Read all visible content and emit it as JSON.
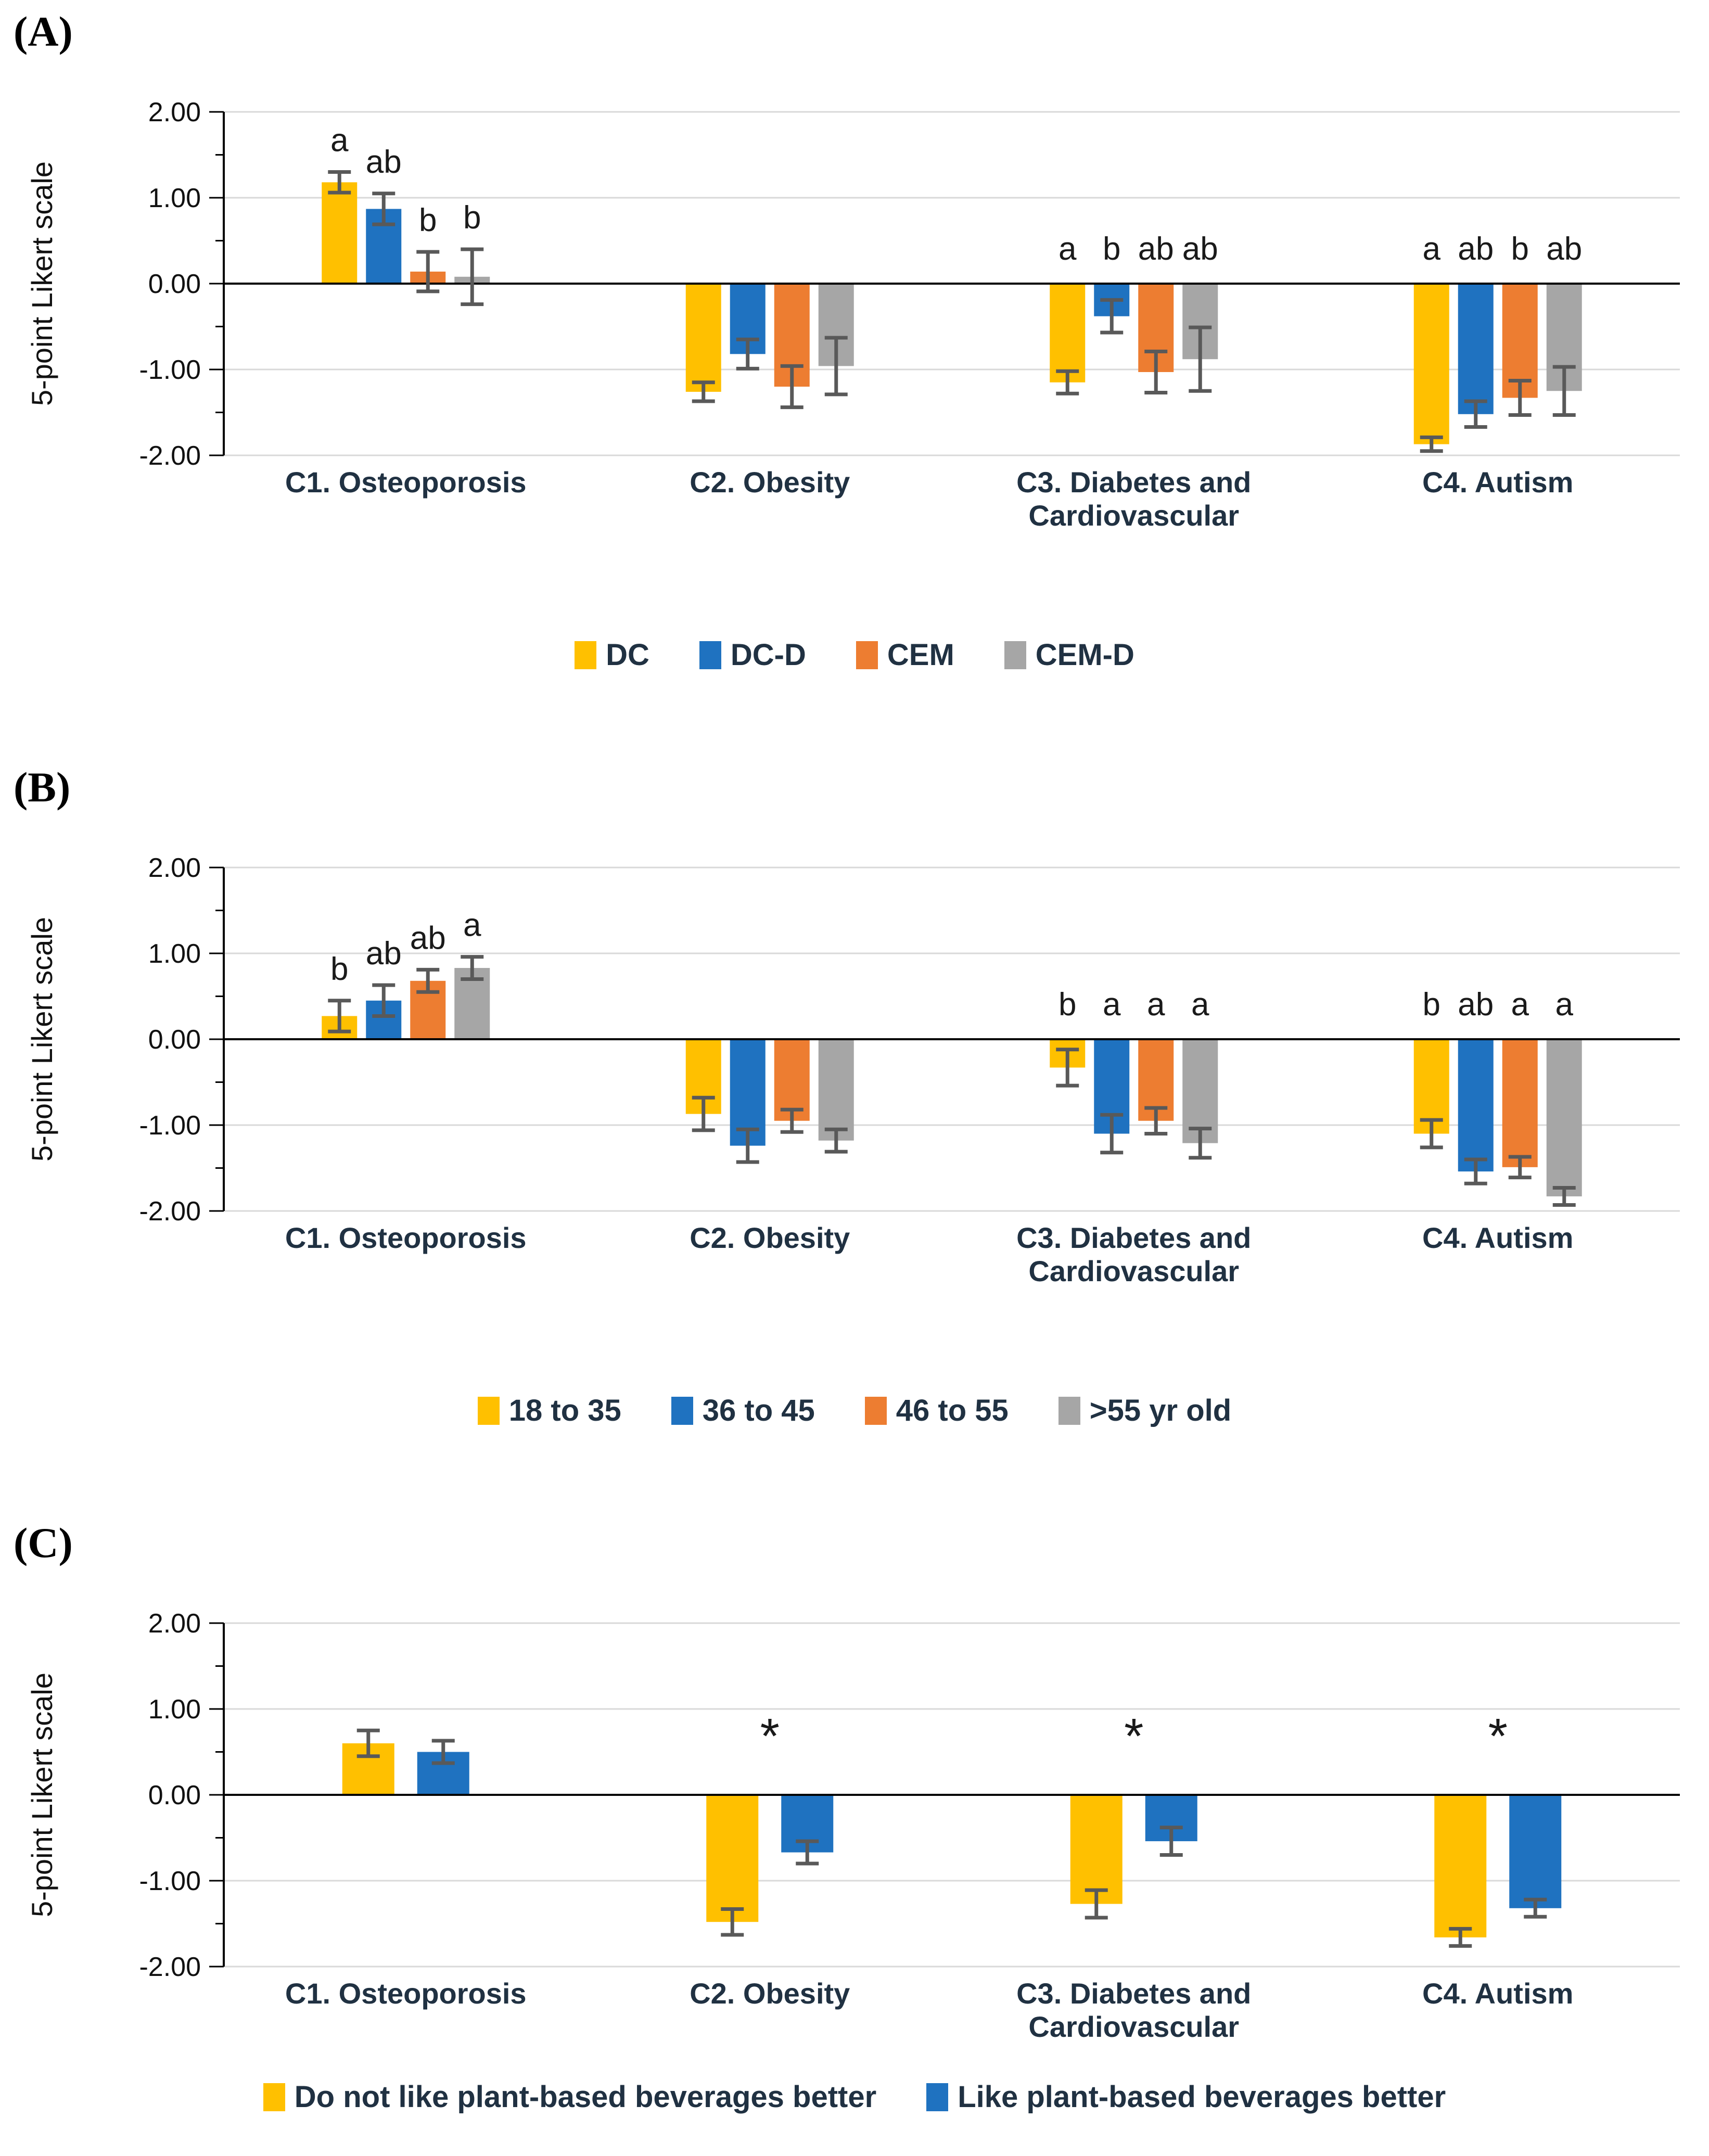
{
  "figure_title": "",
  "colors": {
    "grid": "#D9D9D9",
    "axis": "#000000",
    "error_bar": "#595959",
    "tick_text": "#111111",
    "category_text": "#203142",
    "letter_text": "#1A1A1A"
  },
  "chart_data": [
    {
      "type": "bar",
      "panel_label": "(A)",
      "ylabel": "5-point Likert scale",
      "ylim": [
        -2,
        2
      ],
      "ytick_labels": [
        "2.00",
        "1.00",
        "0.00",
        "-1.00",
        "-2.00"
      ],
      "grid": true,
      "legend_position": "bottom-center",
      "categories": [
        "C1. Osteoporosis",
        "C2. Obesity",
        "C3. Diabetes and\nCardiovascular",
        "C4. Autism"
      ],
      "asterisks": [
        "",
        "",
        "",
        ""
      ],
      "series": [
        {
          "name": "DC",
          "color": "#FFC000",
          "values": [
            1.18,
            -1.26,
            -1.15,
            -1.87
          ],
          "errors": [
            0.12,
            0.11,
            0.13,
            0.08
          ],
          "letters": [
            "a",
            "",
            "a",
            "a"
          ]
        },
        {
          "name": "DC-D",
          "color": "#1F72C0",
          "values": [
            0.87,
            -0.82,
            -0.38,
            -1.52
          ],
          "errors": [
            0.18,
            0.17,
            0.19,
            0.15
          ],
          "letters": [
            "ab",
            "",
            "b",
            "ab"
          ]
        },
        {
          "name": "CEM",
          "color": "#ED7D31",
          "values": [
            0.14,
            -1.2,
            -1.03,
            -1.33
          ],
          "errors": [
            0.23,
            0.24,
            0.24,
            0.2
          ],
          "letters": [
            "b",
            "",
            "ab",
            "b"
          ]
        },
        {
          "name": "CEM-D",
          "color": "#A6A6A6",
          "values": [
            0.08,
            -0.96,
            -0.88,
            -1.25
          ],
          "errors": [
            0.32,
            0.33,
            0.37,
            0.28
          ],
          "letters": [
            "b",
            "",
            "ab",
            "ab"
          ]
        }
      ]
    },
    {
      "type": "bar",
      "panel_label": "(B)",
      "ylabel": "5-point Likert scale",
      "ylim": [
        -2,
        2
      ],
      "ytick_labels": [
        "2.00",
        "1.00",
        "0.00",
        "-1.00",
        "-2.00"
      ],
      "grid": true,
      "legend_position": "bottom-center",
      "categories": [
        "C1. Osteoporosis",
        "C2. Obesity",
        "C3. Diabetes and\nCardiovascular",
        "C4. Autism"
      ],
      "asterisks": [
        "",
        "",
        "",
        ""
      ],
      "series": [
        {
          "name": "18 to 35",
          "color": "#FFC000",
          "values": [
            0.27,
            -0.87,
            -0.33,
            -1.1
          ],
          "errors": [
            0.18,
            0.19,
            0.21,
            0.16
          ],
          "letters": [
            "b",
            "",
            "b",
            "b"
          ]
        },
        {
          "name": "36 to 45",
          "color": "#1F72C0",
          "values": [
            0.45,
            -1.24,
            -1.1,
            -1.54
          ],
          "errors": [
            0.18,
            0.19,
            0.22,
            0.14
          ],
          "letters": [
            "ab",
            "",
            "a",
            "ab"
          ]
        },
        {
          "name": "46 to 55",
          "color": "#ED7D31",
          "values": [
            0.68,
            -0.95,
            -0.95,
            -1.49
          ],
          "errors": [
            0.13,
            0.13,
            0.15,
            0.12
          ],
          "letters": [
            "ab",
            "",
            "a",
            "a"
          ]
        },
        {
          "name": ">55 yr old",
          "color": "#A6A6A6",
          "values": [
            0.83,
            -1.18,
            -1.21,
            -1.83
          ],
          "errors": [
            0.13,
            0.13,
            0.17,
            0.1
          ],
          "letters": [
            "a",
            "",
            "a",
            "a"
          ]
        }
      ]
    },
    {
      "type": "bar",
      "panel_label": "(C)",
      "ylabel": "5-point Likert scale",
      "ylim": [
        -2,
        2
      ],
      "ytick_labels": [
        "2.00",
        "1.00",
        "0.00",
        "-1.00",
        "-2.00"
      ],
      "grid": true,
      "legend_position": "bottom-center",
      "categories": [
        "C1. Osteoporosis",
        "C2. Obesity",
        "C3. Diabetes and\nCardiovascular",
        "C4. Autism"
      ],
      "asterisks": [
        "",
        "*",
        "*",
        "*"
      ],
      "series": [
        {
          "name": "Do not like plant-based beverages better",
          "color": "#FFC000",
          "values": [
            0.6,
            -1.48,
            -1.27,
            -1.66
          ],
          "errors": [
            0.15,
            0.15,
            0.16,
            0.1
          ],
          "letters": [
            "",
            "",
            "",
            ""
          ]
        },
        {
          "name": "Like plant-based beverages better",
          "color": "#1F72C0",
          "values": [
            0.5,
            -0.67,
            -0.54,
            -1.32
          ],
          "errors": [
            0.13,
            0.13,
            0.16,
            0.1
          ],
          "letters": [
            "",
            "",
            "",
            ""
          ]
        }
      ]
    }
  ]
}
